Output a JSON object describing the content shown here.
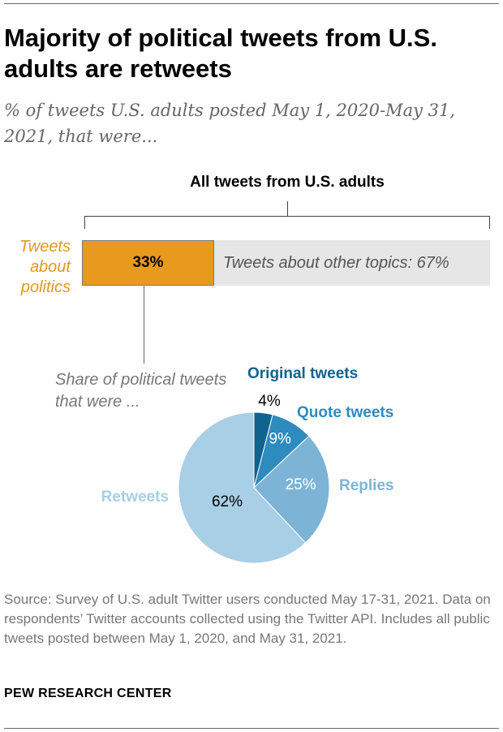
{
  "header": {
    "title": "Majority of political tweets from U.S. adults are retweets",
    "subtitle": "% of tweets U.S. adults posted May 1, 2020-May 31, 2021, that were..."
  },
  "bar_section": {
    "bracket_title": "All tweets from U.S. adults",
    "politics_label": "Tweets about politics",
    "politics_value": "33%",
    "other_label": "Tweets about other topics: 67%",
    "share_label": "Share of political tweets that were ..."
  },
  "colors": {
    "politics": "#e89a1e",
    "other": "#e6e6e6",
    "original": "#10628f",
    "quote": "#2e8bbd",
    "replies": "#7db4d6",
    "retweets": "#a8cfe5"
  },
  "chart_data": [
    {
      "type": "bar",
      "stacked": true,
      "categories": [
        "All tweets from U.S. adults"
      ],
      "series": [
        {
          "name": "Tweets about politics",
          "values": [
            33
          ]
        },
        {
          "name": "Tweets about other topics",
          "values": [
            67
          ]
        }
      ],
      "data_labels": [
        "33%",
        "Tweets about other topics: 67%"
      ]
    },
    {
      "type": "pie",
      "title": "Share of political tweets that were ...",
      "slices": [
        {
          "label": "Original tweets",
          "value": 4,
          "value_label": "4%",
          "color": "#10628f"
        },
        {
          "label": "Quote tweets",
          "value": 9,
          "value_label": "9%",
          "color": "#2e8bbd"
        },
        {
          "label": "Replies",
          "value": 25,
          "value_label": "25%",
          "color": "#7db4d6"
        },
        {
          "label": "Retweets",
          "value": 62,
          "value_label": "62%",
          "color": "#a8cfe5"
        }
      ]
    }
  ],
  "footer": {
    "source": "Source: Survey of U.S. adult Twitter users conducted May 17-31, 2021. Data on respondents’ Twitter accounts collected using the Twitter API. Includes all public tweets posted between May 1, 2020, and May 31, 2021.",
    "brand": "PEW RESEARCH CENTER"
  }
}
